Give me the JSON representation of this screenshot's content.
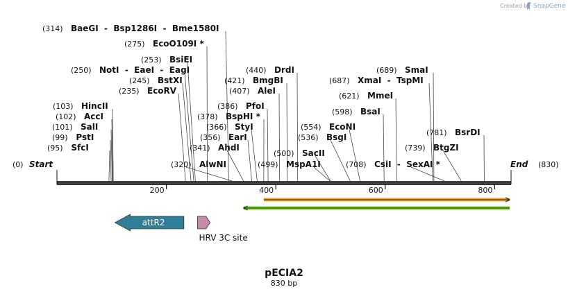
{
  "credit": {
    "prefix": "Created by",
    "brand": "SnapGene"
  },
  "map": {
    "title": "pECIA2",
    "length_label": "830 bp",
    "length": 830,
    "start": {
      "pos": "(0)",
      "label": "Start"
    },
    "end": {
      "pos": "(830)",
      "label": "End"
    }
  },
  "ticks": [
    {
      "value": 200,
      "label": "200"
    },
    {
      "value": 400,
      "label": "400"
    },
    {
      "value": 600,
      "label": "600"
    },
    {
      "value": 800,
      "label": "800"
    }
  ],
  "sites": [
    {
      "id": "sfci",
      "text": "(95)",
      "names": "SfcI",
      "pos": 95
    },
    {
      "id": "psti",
      "text": "(99)",
      "names": "PstI",
      "pos": 99
    },
    {
      "id": "sali",
      "text": "(101)",
      "names": "SalI",
      "pos": 101
    },
    {
      "id": "acci",
      "text": "(102)",
      "names": "AccI",
      "pos": 102
    },
    {
      "id": "hincii",
      "text": "(103)",
      "names": "HincII",
      "pos": 103
    },
    {
      "id": "ecorv",
      "text": "(235)",
      "names": "EcoRV",
      "pos": 235
    },
    {
      "id": "bstxi",
      "text": "(245)",
      "names": "BstXI",
      "pos": 245
    },
    {
      "id": "noti",
      "text": "(250)",
      "names": "NotI  -  EaeI  -  EagI",
      "pos": 250
    },
    {
      "id": "bsiei",
      "text": "(253)",
      "names": "BsiEI",
      "pos": 253
    },
    {
      "id": "ecoo109i",
      "text": "(275)",
      "names": "EcoO109I *",
      "pos": 275
    },
    {
      "id": "baegi",
      "text": "(314)",
      "names": "BaeGI  -  Bsp1286I  -  Bme1580I",
      "pos": 314
    },
    {
      "id": "alwni",
      "text": "(320)",
      "names": "AlwNI",
      "pos": 320
    },
    {
      "id": "ahdi",
      "text": "(341)",
      "names": "AhdI",
      "pos": 341
    },
    {
      "id": "eari",
      "text": "(356)",
      "names": "EarI",
      "pos": 356
    },
    {
      "id": "styi",
      "text": "(366)",
      "names": "StyI",
      "pos": 366
    },
    {
      "id": "bsphi",
      "text": "(378)",
      "names": "BspHI *",
      "pos": 378
    },
    {
      "id": "pfoi",
      "text": "(386)",
      "names": "PfoI",
      "pos": 386
    },
    {
      "id": "alei",
      "text": "(407)",
      "names": "AleI",
      "pos": 407
    },
    {
      "id": "bmgbi",
      "text": "(421)",
      "names": "BmgBI",
      "pos": 421
    },
    {
      "id": "drdi",
      "text": "(440)",
      "names": "DrdI",
      "pos": 440
    },
    {
      "id": "mspa1i",
      "text": "(499)",
      "names": "MspA1I",
      "pos": 499
    },
    {
      "id": "sacii",
      "text": "(500)",
      "names": "SacII",
      "pos": 500
    },
    {
      "id": "bsgi",
      "text": "(536)",
      "names": "BsgI",
      "pos": 536
    },
    {
      "id": "econi",
      "text": "(554)",
      "names": "EcoNI",
      "pos": 554
    },
    {
      "id": "bsai",
      "text": "(598)",
      "names": "BsaI",
      "pos": 598
    },
    {
      "id": "mmei",
      "text": "(621)",
      "names": "MmeI",
      "pos": 621
    },
    {
      "id": "xmai",
      "text": "(687)",
      "names": "XmaI  -  TspMI",
      "pos": 687
    },
    {
      "id": "smai",
      "text": "(689)",
      "names": "SmaI",
      "pos": 689
    },
    {
      "id": "csii",
      "text": "(708)",
      "names": "CsiI  -  SexAI *",
      "pos": 708
    },
    {
      "id": "btgzi",
      "text": "(739)",
      "names": "BtgZI",
      "pos": 739
    },
    {
      "id": "bsrdi",
      "text": "(781)",
      "names": "BsrDI",
      "pos": 781
    }
  ],
  "features": [
    {
      "id": "attr2",
      "label": "attR2",
      "color": "#2f7f98",
      "direction": "reverse",
      "start": 106,
      "end": 232
    },
    {
      "id": "hrv3c",
      "label": "HRV 3C site",
      "color": "#c48aa8",
      "direction": "forward",
      "start": 257,
      "end": 280
    }
  ],
  "orfs": [
    {
      "id": "orf-forward",
      "color": "#f0a020",
      "direction": "forward",
      "start": 378,
      "end": 830
    },
    {
      "id": "orf-reverse",
      "color": "#7ed321",
      "direction": "reverse",
      "start": 341,
      "end": 830
    }
  ]
}
